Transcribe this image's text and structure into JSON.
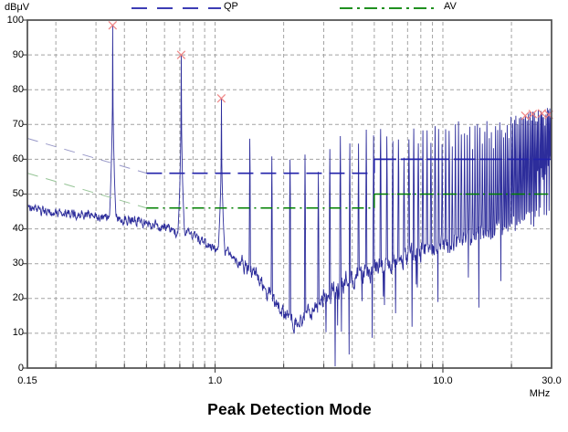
{
  "title": "Peak Detection Mode",
  "chart_data": {
    "type": "line",
    "title": "Peak Detection Mode",
    "x_axis": {
      "unit": "MHz",
      "scale": "log",
      "min": 0.15,
      "max": 30,
      "major_ticks": [
        {
          "value": 0.15,
          "label": "0.15"
        },
        {
          "value": 1,
          "label": "1.0"
        },
        {
          "value": 10,
          "label": "10.0"
        },
        {
          "value": 30,
          "label": "30.0"
        }
      ],
      "grid_values": [
        0.2,
        0.3,
        0.4,
        0.5,
        0.6,
        0.7,
        0.8,
        0.9,
        1,
        2,
        3,
        4,
        5,
        6,
        7,
        8,
        9,
        10,
        20
      ]
    },
    "y_axis": {
      "unit": "dBμV",
      "min": 0,
      "max": 100,
      "tick_values": [
        0,
        10,
        20,
        30,
        40,
        50,
        60,
        70,
        80,
        90,
        100
      ],
      "tick_labels": [
        "0",
        "10",
        "20",
        "30",
        "40",
        "50",
        "60",
        "70",
        "80",
        "90",
        "100"
      ],
      "grid_values": [
        10,
        20,
        30,
        40,
        50,
        60,
        70,
        80,
        90
      ]
    },
    "limits": [
      {
        "name": "QP",
        "color": "#2222aa",
        "color_faint": "#9898c8",
        "segments": [
          {
            "from": [
              0.15,
              66
            ],
            "to": [
              0.5,
              56
            ],
            "style": "sloped"
          },
          {
            "from": [
              0.5,
              56
            ],
            "to": [
              5,
              56
            ],
            "style": "dash"
          },
          {
            "from": [
              5,
              56
            ],
            "to": [
              5,
              60
            ],
            "style": "solid"
          },
          {
            "from": [
              5,
              60
            ],
            "to": [
              30,
              60
            ],
            "style": "longdash"
          }
        ]
      },
      {
        "name": "AV",
        "color": "#008000",
        "color_faint": "#96c496",
        "segments": [
          {
            "from": [
              0.15,
              56
            ],
            "to": [
              0.5,
              46
            ],
            "style": "sloped"
          },
          {
            "from": [
              0.5,
              46
            ],
            "to": [
              5,
              46
            ],
            "style": "dashdot"
          },
          {
            "from": [
              5,
              46
            ],
            "to": [
              5,
              50
            ],
            "style": "solid"
          },
          {
            "from": [
              5,
              50
            ],
            "to": [
              30,
              50
            ],
            "style": "dashdot2"
          }
        ]
      }
    ],
    "trace": {
      "name": "peak-detector-spectrum",
      "color": "#2d2d9b",
      "envelope_dB": [
        [
          0.15,
          46.5
        ],
        [
          0.18,
          44.5
        ],
        [
          0.22,
          44.8
        ],
        [
          0.27,
          44
        ],
        [
          0.32,
          43.2
        ],
        [
          0.4,
          43
        ],
        [
          0.47,
          42
        ],
        [
          0.55,
          41
        ],
        [
          0.62,
          40
        ],
        [
          0.75,
          38.5
        ],
        [
          0.85,
          36.5
        ],
        [
          1.0,
          34.2
        ],
        [
          1.15,
          33
        ],
        [
          1.25,
          31
        ],
        [
          1.4,
          28.5
        ],
        [
          1.6,
          25
        ],
        [
          1.8,
          20
        ],
        [
          2.0,
          16
        ],
        [
          2.2,
          13.5
        ],
        [
          2.35,
          13
        ],
        [
          2.6,
          16
        ],
        [
          2.9,
          19.5
        ],
        [
          3.3,
          22.5
        ],
        [
          3.8,
          25
        ],
        [
          4.5,
          27
        ],
        [
          5.2,
          29
        ],
        [
          6,
          30.5
        ],
        [
          7,
          32
        ],
        [
          8,
          33.5
        ],
        [
          9.5,
          35
        ],
        [
          11,
          36.5
        ],
        [
          13,
          38
        ],
        [
          16,
          40
        ],
        [
          19,
          41.5
        ],
        [
          23,
          43
        ],
        [
          27,
          44.5
        ],
        [
          30,
          45.5
        ]
      ],
      "harmonic_fundamental_MHz": 0.355,
      "big_peaks": [
        [
          0.355,
          98.5
        ],
        [
          0.71,
          90
        ],
        [
          1.065,
          77.5
        ]
      ],
      "peak_envelope_dB": [
        [
          1.42,
          65.5
        ],
        [
          1.78,
          59.5
        ],
        [
          2.13,
          60.5
        ],
        [
          2.49,
          60.5
        ],
        [
          2.84,
          58.5
        ],
        [
          3.2,
          64
        ],
        [
          3.9,
          66
        ],
        [
          5,
          66.5
        ],
        [
          7,
          67.5
        ],
        [
          10,
          68
        ],
        [
          14,
          69.5
        ],
        [
          20,
          71
        ],
        [
          25,
          72.5
        ],
        [
          30,
          73.5
        ]
      ]
    },
    "markers": {
      "symbol": "x",
      "color": "#ef7d7d",
      "points": [
        [
          0.355,
          98.5
        ],
        [
          0.71,
          90
        ],
        [
          1.065,
          77.5
        ],
        [
          23,
          72.5
        ],
        [
          24.8,
          73
        ],
        [
          27.2,
          73.2
        ],
        [
          29.2,
          72.8
        ]
      ]
    },
    "colors": {
      "grid": "#a3a3a3",
      "frame": "#4d4d4d",
      "background": "#ffffff"
    }
  }
}
